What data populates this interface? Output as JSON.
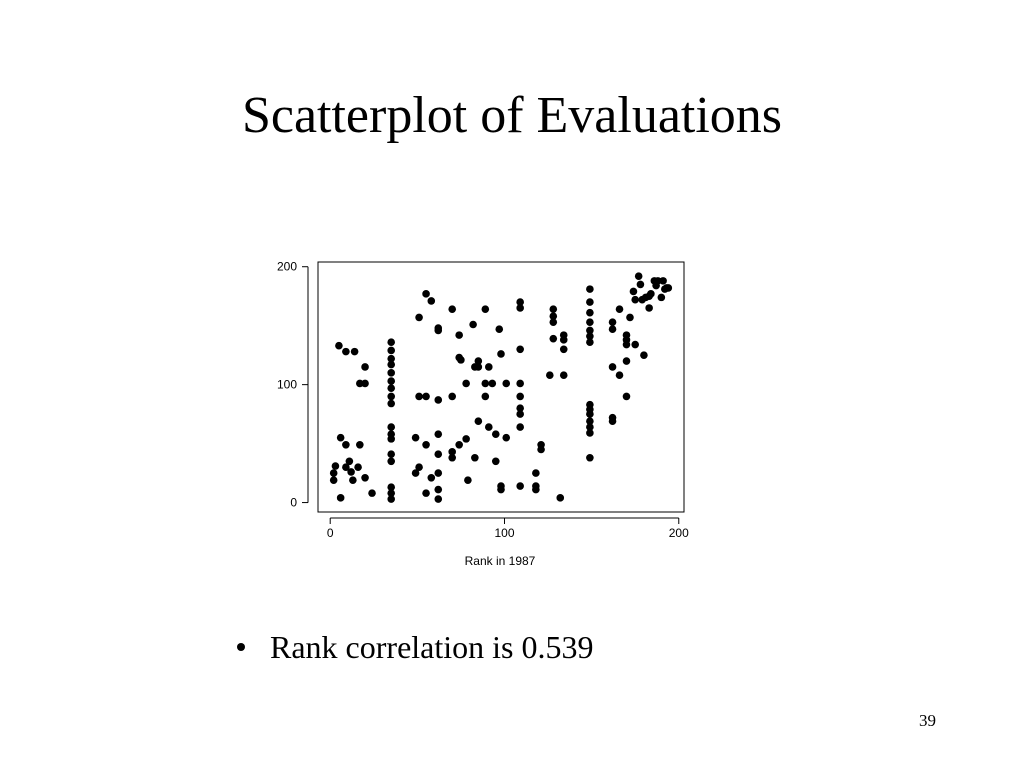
{
  "title": "Scatterplot of Evaluations",
  "chart_data": {
    "type": "scatter",
    "xlabel": "Rank in 1987",
    "color": "#000000",
    "xlim": [
      -7,
      203
    ],
    "ylim": [
      -8,
      204
    ],
    "xticks": [
      0,
      100,
      200
    ],
    "yticks": [
      0,
      100,
      200
    ],
    "grid": false,
    "x": [
      3,
      2,
      2,
      5,
      6,
      6,
      9,
      9,
      9,
      11,
      12,
      13,
      14,
      16,
      17,
      17,
      20,
      20,
      20,
      24,
      35,
      35,
      35,
      35,
      35,
      35,
      35,
      35,
      35,
      35,
      35,
      35,
      35,
      35,
      35,
      35,
      35,
      49,
      49,
      51,
      51,
      51,
      55,
      55,
      55,
      55,
      58,
      58,
      62,
      62,
      62,
      62,
      62,
      62,
      62,
      62,
      70,
      70,
      70,
      70,
      74,
      74,
      74,
      75,
      78,
      78,
      79,
      82,
      83,
      83,
      85,
      85,
      85,
      89,
      89,
      89,
      91,
      91,
      93,
      95,
      95,
      97,
      98,
      98,
      98,
      101,
      101,
      109,
      109,
      109,
      109,
      109,
      109,
      109,
      109,
      109,
      118,
      118,
      118,
      121,
      121,
      126,
      128,
      128,
      128,
      128,
      132,
      134,
      134,
      134,
      134,
      149,
      149,
      149,
      149,
      149,
      149,
      149,
      149,
      149,
      149,
      149,
      149,
      149,
      149,
      162,
      162,
      162,
      162,
      162,
      166,
      166,
      170,
      170,
      170,
      170,
      170,
      172,
      174,
      175,
      175,
      177,
      178,
      179,
      180,
      181,
      183,
      183,
      184,
      186,
      187,
      188,
      190,
      191,
      192,
      193,
      194
    ],
    "y": [
      31,
      25,
      19,
      133,
      4,
      55,
      49,
      128,
      30,
      35,
      26,
      19,
      128,
      30,
      49,
      101,
      101,
      115,
      21,
      8,
      136,
      129,
      122,
      117,
      110,
      103,
      97,
      90,
      84,
      64,
      58,
      54,
      41,
      35,
      13,
      8,
      3,
      55,
      25,
      30,
      157,
      90,
      177,
      90,
      49,
      8,
      171,
      21,
      87,
      148,
      146,
      58,
      41,
      25,
      11,
      3,
      164,
      90,
      43,
      38,
      49,
      123,
      142,
      121,
      54,
      101,
      19,
      151,
      115,
      38,
      120,
      115,
      69,
      164,
      101,
      90,
      115,
      64,
      101,
      58,
      35,
      147,
      126,
      14,
      11,
      101,
      55,
      101,
      90,
      80,
      75,
      64,
      130,
      170,
      165,
      14,
      25,
      14,
      11,
      49,
      45,
      108,
      164,
      158,
      153,
      139,
      4,
      142,
      138,
      130,
      108,
      181,
      170,
      161,
      153,
      146,
      141,
      136,
      83,
      79,
      75,
      69,
      64,
      59,
      38,
      153,
      147,
      115,
      72,
      69,
      164,
      108,
      142,
      138,
      134,
      120,
      90,
      157,
      179,
      172,
      134,
      192,
      185,
      172,
      125,
      174,
      175,
      165,
      177,
      188,
      184,
      188,
      174,
      188,
      181,
      182,
      182
    ]
  },
  "bullet": "Rank correlation is 0.539",
  "page_number": "39"
}
